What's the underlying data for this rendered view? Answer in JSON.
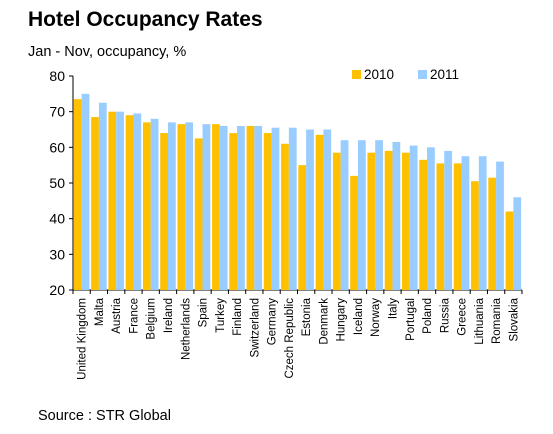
{
  "title": "Hotel Occupancy Rates",
  "subtitle": "Jan - Nov, occupancy, %",
  "source": "Source : STR Global",
  "colors": {
    "2010": "#ffc000",
    "2011": "#99ccff"
  },
  "chart_data": {
    "type": "bar",
    "title": "Hotel Occupancy Rates",
    "ylim": [
      20,
      80
    ],
    "yticks": [
      20,
      30,
      40,
      50,
      60,
      70,
      80
    ],
    "grid": false,
    "legend_position": "top-right",
    "categories": [
      "United Kingdom",
      "Malta",
      "Austria",
      "France",
      "Belgium",
      "Ireland",
      "Netherlands",
      "Spain",
      "Turkey",
      "Finland",
      "Switzerland",
      "Germany",
      "Czech Republic",
      "Estonia",
      "Denmark",
      "Hungary",
      "Iceland",
      "Norway",
      "Italy",
      "Portugal",
      "Poland",
      "Russia",
      "Greece",
      "Lithuania",
      "Romania",
      "Slovakia"
    ],
    "series": [
      {
        "name": "2010",
        "values": [
          73.5,
          68.5,
          70.0,
          69.0,
          67.0,
          64.0,
          66.5,
          62.5,
          66.5,
          64.0,
          66.0,
          64.0,
          61.0,
          55.0,
          63.5,
          58.5,
          52.0,
          58.5,
          59.0,
          58.5,
          56.5,
          55.5,
          55.5,
          50.5,
          51.5,
          42.0
        ]
      },
      {
        "name": "2011",
        "values": [
          75.0,
          72.5,
          70.0,
          69.5,
          68.0,
          67.0,
          67.0,
          66.5,
          66.0,
          66.0,
          66.0,
          65.5,
          65.5,
          65.0,
          65.0,
          62.0,
          62.0,
          62.0,
          61.5,
          60.5,
          60.0,
          59.0,
          57.5,
          57.5,
          56.0,
          46.0
        ]
      }
    ]
  }
}
